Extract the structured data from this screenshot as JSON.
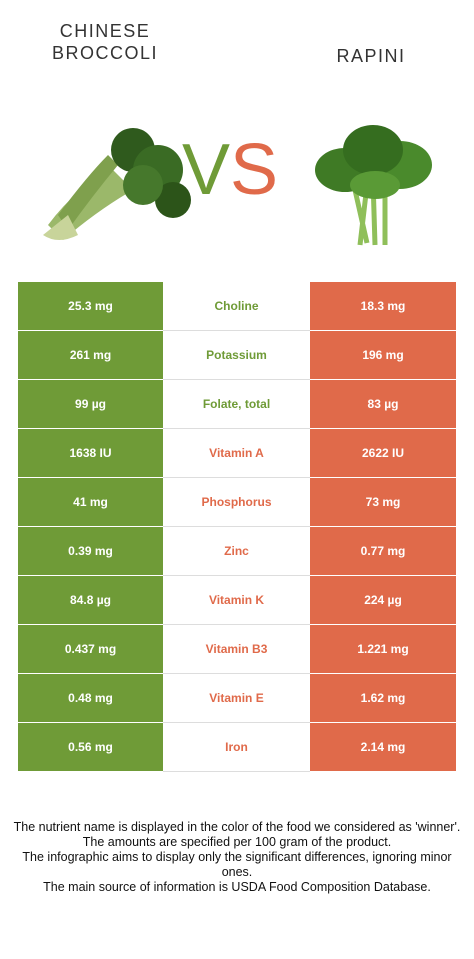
{
  "header": {
    "left_food": [
      "CHINESE",
      "BROCCOLI"
    ],
    "right_food": "RAPINI",
    "vs": [
      "V",
      "S"
    ],
    "vs_colors": [
      "#6f9b37",
      "#e06a4a"
    ]
  },
  "colors": {
    "left": "#6f9b37",
    "right": "#e06a4a"
  },
  "table": {
    "rows": [
      {
        "left": "25.3 mg",
        "nutrient": "Choline",
        "right": "18.3 mg",
        "nutrient_color": "#6f9b37"
      },
      {
        "left": "261 mg",
        "nutrient": "Potassium",
        "right": "196 mg",
        "nutrient_color": "#6f9b37"
      },
      {
        "left": "99 µg",
        "nutrient": "Folate, total",
        "right": "83 µg",
        "nutrient_color": "#6f9b37"
      },
      {
        "left": "1638 IU",
        "nutrient": "Vitamin A",
        "right": "2622 IU",
        "nutrient_color": "#e06a4a"
      },
      {
        "left": "41 mg",
        "nutrient": "Phosphorus",
        "right": "73 mg",
        "nutrient_color": "#e06a4a"
      },
      {
        "left": "0.39 mg",
        "nutrient": "Zinc",
        "right": "0.77 mg",
        "nutrient_color": "#e06a4a"
      },
      {
        "left": "84.8 µg",
        "nutrient": "Vitamin K",
        "right": "224 µg",
        "nutrient_color": "#e06a4a"
      },
      {
        "left": "0.437 mg",
        "nutrient": "Vitamin B3",
        "right": "1.221 mg",
        "nutrient_color": "#e06a4a"
      },
      {
        "left": "0.48 mg",
        "nutrient": "Vitamin E",
        "right": "1.62 mg",
        "nutrient_color": "#e06a4a"
      },
      {
        "left": "0.56 mg",
        "nutrient": "Iron",
        "right": "2.14 mg",
        "nutrient_color": "#e06a4a"
      }
    ]
  },
  "footer": {
    "lines": [
      "The nutrient name is displayed in the color of the food we considered as 'winner'.",
      "The amounts are specified per 100 gram of the product.",
      "The infographic aims to display only the significant differences, ignoring minor ones.",
      "The main source of information is USDA Food Composition Database."
    ]
  }
}
